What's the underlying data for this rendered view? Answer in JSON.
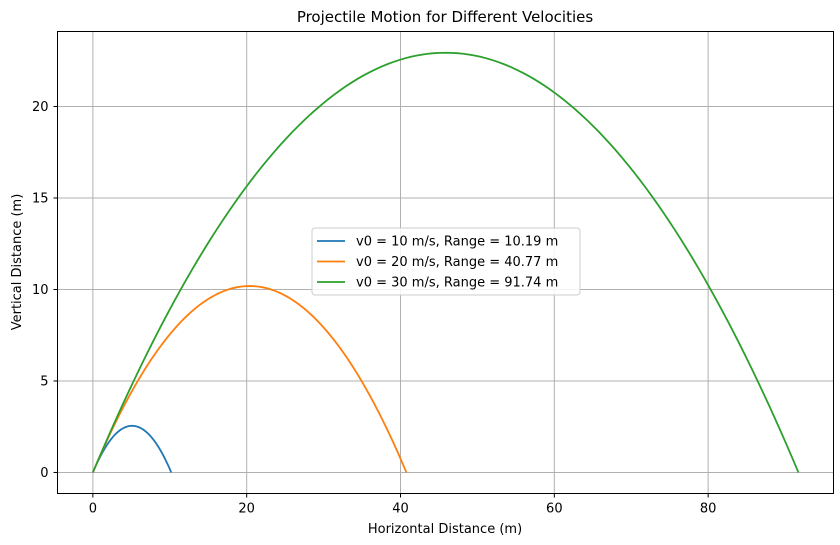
{
  "chart_data": {
    "type": "line",
    "title": "Projectile Motion for Different Velocities",
    "xlabel": "Horizontal Distance (m)",
    "ylabel": "Vertical Distance (m)",
    "xlim": [
      -4.6,
      96.3
    ],
    "ylim": [
      -1.15,
      24.1
    ],
    "xticks": [
      0,
      20,
      40,
      60,
      80
    ],
    "yticks": [
      0,
      5,
      10,
      15,
      20
    ],
    "grid": true,
    "legend_position": "center",
    "launch_angle_deg": 45,
    "gravity": 9.81,
    "series": [
      {
        "name": "v0 = 10 m/s, Range = 10.19 m",
        "v0": 10,
        "range": 10.19,
        "max_height": 2.55,
        "color": "#1f77b4"
      },
      {
        "name": "v0 = 20 m/s, Range = 40.77 m",
        "v0": 20,
        "range": 40.77,
        "max_height": 10.19,
        "color": "#ff7f0e"
      },
      {
        "name": "v0 = 30 m/s, Range = 91.74 m",
        "v0": 30,
        "range": 91.74,
        "max_height": 22.94,
        "color": "#2ca02c"
      }
    ]
  }
}
